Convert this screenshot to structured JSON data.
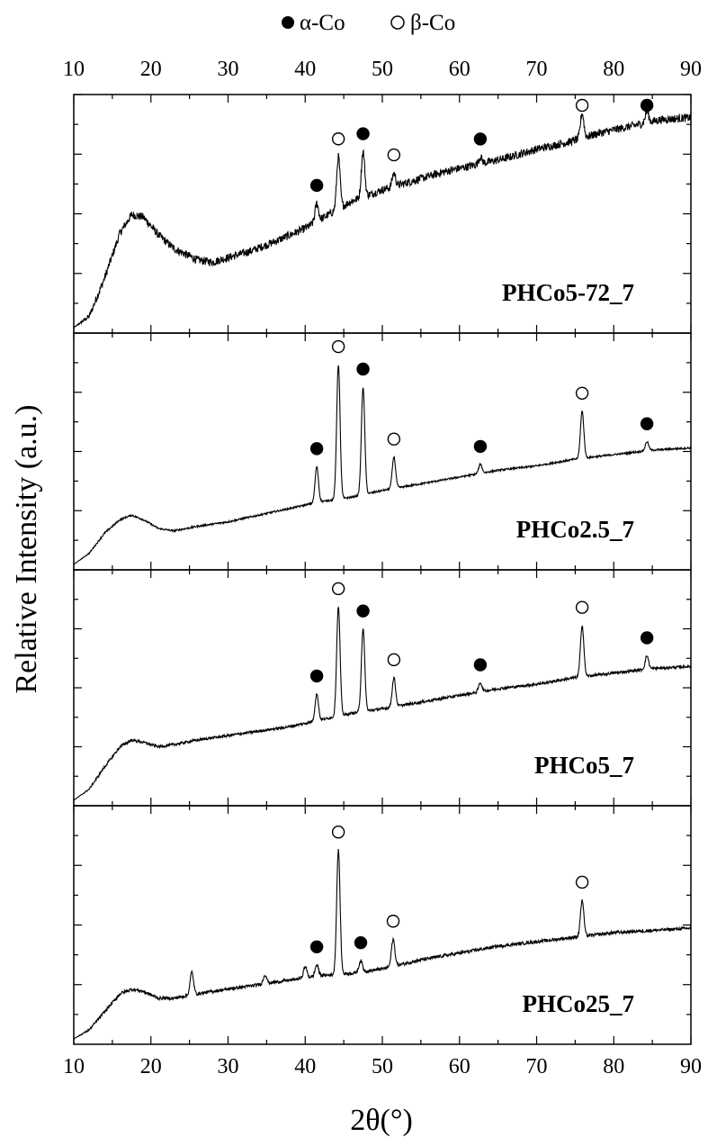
{
  "chart_data": {
    "type": "line",
    "xlabel": "2θ(°)",
    "ylabel": "Relative Intensity (a.u.)",
    "xlim": [
      10,
      90
    ],
    "x_ticks": [
      10,
      20,
      30,
      40,
      50,
      60,
      70,
      80,
      90
    ],
    "x_tick_labels": [
      "10",
      "20",
      "30",
      "40",
      "50",
      "60",
      "70",
      "80",
      "90"
    ],
    "legend": {
      "position": "top-center",
      "entries": [
        {
          "marker": "filled-circle",
          "label": "α-Co"
        },
        {
          "marker": "open-circle",
          "label": "β-Co"
        }
      ]
    },
    "grid": false,
    "panels": [
      {
        "label": "PHCo5-72_7",
        "noise": 0.018,
        "baseline": [
          [
            10,
            0.0
          ],
          [
            12,
            0.05
          ],
          [
            14,
            0.22
          ],
          [
            16,
            0.42
          ],
          [
            17.5,
            0.5
          ],
          [
            19,
            0.49
          ],
          [
            21,
            0.41
          ],
          [
            23,
            0.35
          ],
          [
            26,
            0.3
          ],
          [
            28,
            0.29
          ],
          [
            30,
            0.31
          ],
          [
            33,
            0.34
          ],
          [
            36,
            0.38
          ],
          [
            40,
            0.44
          ],
          [
            43,
            0.5
          ],
          [
            46,
            0.56
          ],
          [
            50,
            0.61
          ],
          [
            54,
            0.65
          ],
          [
            58,
            0.69
          ],
          [
            62,
            0.72
          ],
          [
            66,
            0.75
          ],
          [
            70,
            0.79
          ],
          [
            74,
            0.82
          ],
          [
            78,
            0.86
          ],
          [
            82,
            0.89
          ],
          [
            86,
            0.92
          ],
          [
            90,
            0.93
          ]
        ],
        "peaks": [
          {
            "x": 41.5,
            "height": 0.08,
            "phase": "α-Co"
          },
          {
            "x": 44.3,
            "height": 0.23,
            "phase": "β-Co"
          },
          {
            "x": 47.5,
            "height": 0.2,
            "phase": "α-Co"
          },
          {
            "x": 51.5,
            "height": 0.06,
            "phase": "β-Co"
          },
          {
            "x": 62.7,
            "height": 0.03,
            "phase": "α-Co"
          },
          {
            "x": 75.9,
            "height": 0.11,
            "phase": "β-Co"
          },
          {
            "x": 84.3,
            "height": 0.05,
            "phase": "α-Co"
          }
        ]
      },
      {
        "label": "PHCo2.5_7",
        "noise": 0.004,
        "baseline": [
          [
            10,
            0.0
          ],
          [
            12,
            0.05
          ],
          [
            14,
            0.14
          ],
          [
            16,
            0.2
          ],
          [
            17.5,
            0.22
          ],
          [
            19,
            0.2
          ],
          [
            21,
            0.16
          ],
          [
            23,
            0.15
          ],
          [
            26,
            0.17
          ],
          [
            30,
            0.19
          ],
          [
            34,
            0.22
          ],
          [
            38,
            0.25
          ],
          [
            42,
            0.28
          ],
          [
            46,
            0.3
          ],
          [
            50,
            0.33
          ],
          [
            55,
            0.36
          ],
          [
            60,
            0.39
          ],
          [
            65,
            0.42
          ],
          [
            70,
            0.44
          ],
          [
            75,
            0.47
          ],
          [
            80,
            0.49
          ],
          [
            85,
            0.51
          ],
          [
            90,
            0.52
          ]
        ],
        "peaks": [
          {
            "x": 41.5,
            "height": 0.16,
            "phase": "α-Co"
          },
          {
            "x": 44.3,
            "height": 0.6,
            "phase": "β-Co"
          },
          {
            "x": 47.5,
            "height": 0.48,
            "phase": "α-Co"
          },
          {
            "x": 51.5,
            "height": 0.14,
            "phase": "β-Co"
          },
          {
            "x": 62.7,
            "height": 0.04,
            "phase": "α-Co"
          },
          {
            "x": 75.9,
            "height": 0.21,
            "phase": "β-Co"
          },
          {
            "x": 84.3,
            "height": 0.04,
            "phase": "α-Co"
          }
        ]
      },
      {
        "label": "PHCo5_7",
        "noise": 0.006,
        "baseline": [
          [
            10,
            0.0
          ],
          [
            12,
            0.05
          ],
          [
            14,
            0.15
          ],
          [
            16,
            0.24
          ],
          [
            17.5,
            0.27
          ],
          [
            19,
            0.26
          ],
          [
            21,
            0.24
          ],
          [
            23,
            0.25
          ],
          [
            26,
            0.27
          ],
          [
            30,
            0.29
          ],
          [
            34,
            0.31
          ],
          [
            38,
            0.33
          ],
          [
            42,
            0.36
          ],
          [
            46,
            0.39
          ],
          [
            50,
            0.41
          ],
          [
            55,
            0.44
          ],
          [
            60,
            0.47
          ],
          [
            65,
            0.5
          ],
          [
            70,
            0.52
          ],
          [
            75,
            0.55
          ],
          [
            80,
            0.57
          ],
          [
            85,
            0.59
          ],
          [
            90,
            0.6
          ]
        ],
        "peaks": [
          {
            "x": 41.5,
            "height": 0.12,
            "phase": "α-Co"
          },
          {
            "x": 44.3,
            "height": 0.49,
            "phase": "β-Co"
          },
          {
            "x": 47.5,
            "height": 0.37,
            "phase": "α-Co"
          },
          {
            "x": 51.5,
            "height": 0.13,
            "phase": "β-Co"
          },
          {
            "x": 62.7,
            "height": 0.04,
            "phase": "α-Co"
          },
          {
            "x": 75.9,
            "height": 0.23,
            "phase": "β-Co"
          },
          {
            "x": 84.3,
            "height": 0.06,
            "phase": "α-Co"
          }
        ]
      },
      {
        "label": "PHCo25_7",
        "noise": 0.007,
        "baseline": [
          [
            10,
            0.0
          ],
          [
            12,
            0.04
          ],
          [
            14,
            0.12
          ],
          [
            16,
            0.2
          ],
          [
            17.5,
            0.22
          ],
          [
            19,
            0.21
          ],
          [
            21,
            0.18
          ],
          [
            23,
            0.18
          ],
          [
            26,
            0.2
          ],
          [
            30,
            0.22
          ],
          [
            34,
            0.24
          ],
          [
            38,
            0.26
          ],
          [
            42,
            0.28
          ],
          [
            46,
            0.29
          ],
          [
            50,
            0.31
          ],
          [
            55,
            0.35
          ],
          [
            60,
            0.38
          ],
          [
            65,
            0.41
          ],
          [
            70,
            0.43
          ],
          [
            75,
            0.45
          ],
          [
            80,
            0.47
          ],
          [
            85,
            0.48
          ],
          [
            90,
            0.49
          ]
        ],
        "peaks": [
          {
            "x": 25.3,
            "height": 0.1,
            "phase": null
          },
          {
            "x": 34.8,
            "height": 0.04,
            "phase": null
          },
          {
            "x": 40.0,
            "height": 0.05,
            "phase": null
          },
          {
            "x": 41.5,
            "height": 0.05,
            "phase": "α-Co"
          },
          {
            "x": 44.3,
            "height": 0.55,
            "phase": "β-Co"
          },
          {
            "x": 47.2,
            "height": 0.05,
            "phase": "α-Co"
          },
          {
            "x": 51.4,
            "height": 0.12,
            "phase": "β-Co"
          },
          {
            "x": 75.9,
            "height": 0.16,
            "phase": "β-Co"
          }
        ]
      }
    ]
  }
}
